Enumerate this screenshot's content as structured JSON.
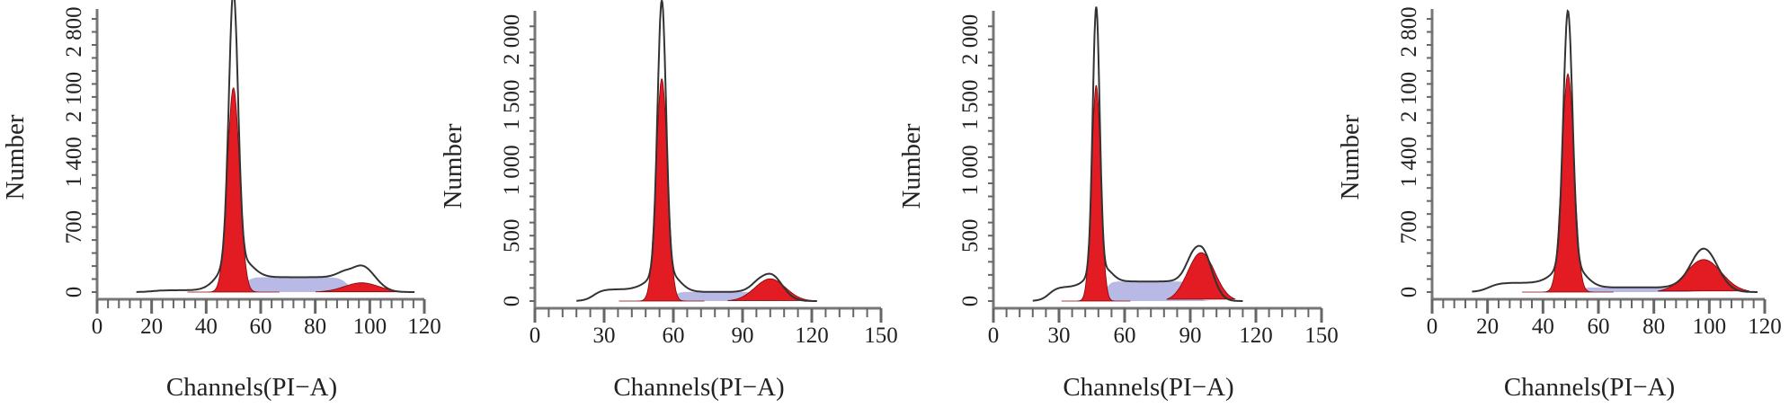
{
  "chart_data": [
    {
      "type": "area",
      "xlabel": "Channels(PI−A)",
      "ylabel": "Number",
      "xlim": [
        0,
        120
      ],
      "ylim": [
        0,
        2950
      ],
      "xticks": [
        0,
        20,
        40,
        60,
        80,
        100,
        120
      ],
      "xtick_labels": [
        "0",
        "20",
        "40",
        "60",
        "80",
        "100",
        "120"
      ],
      "yticks": [
        0,
        700,
        1400,
        2100,
        2800
      ],
      "ytick_labels": [
        "0",
        "700",
        "1 400",
        "2 100",
        "2 800"
      ],
      "g1": {
        "channel": 50,
        "total_peak": 2900,
        "fit_peak": 2200
      },
      "s_phase": {
        "start": 54,
        "end": 92,
        "level": 160
      },
      "g2": {
        "channel": 97,
        "total_peak": 330,
        "fit_peak": 100
      },
      "debris_level": 20,
      "colors": {
        "g1_g2_fit": "#e31b23",
        "s_phase_fit": "#b9b9e6",
        "histogram": "#333333"
      }
    },
    {
      "type": "area",
      "xlabel": "Channels(PI−A)",
      "ylabel": "Number",
      "xlim": [
        0,
        150
      ],
      "ylim": [
        0,
        2150
      ],
      "xticks": [
        0,
        30,
        60,
        90,
        120,
        150
      ],
      "xtick_labels": [
        "0",
        "30",
        "60",
        "90",
        "120",
        "150"
      ],
      "yticks": [
        0,
        500,
        1000,
        1500,
        2000
      ],
      "ytick_labels": [
        "0",
        "500",
        "1 000",
        "1 500",
        "2 000"
      ],
      "g1": {
        "channel": 55,
        "total_peak": 2050,
        "fit_peak": 1700
      },
      "s_phase": {
        "start": 60,
        "end": 98,
        "level": 70
      },
      "g2": {
        "channel": 102,
        "total_peak": 240,
        "fit_peak": 170
      },
      "debris_level": 90,
      "colors": {
        "g1_g2_fit": "#e31b23",
        "s_phase_fit": "#b9b9e6",
        "histogram": "#333333"
      }
    },
    {
      "type": "area",
      "xlabel": "Channels(PI−A)",
      "ylabel": "Number",
      "xlim": [
        0,
        150
      ],
      "ylim": [
        0,
        2150
      ],
      "xticks": [
        0,
        30,
        60,
        90,
        120,
        150
      ],
      "xtick_labels": [
        "0",
        "30",
        "60",
        "90",
        "120",
        "150"
      ],
      "yticks": [
        0,
        500,
        1000,
        1500,
        2000
      ],
      "ytick_labels": [
        "0",
        "500",
        "1 000",
        "1 500",
        "2 000"
      ],
      "g1": {
        "channel": 47,
        "total_peak": 2000,
        "fit_peak": 1650
      },
      "s_phase": {
        "start": 51,
        "end": 92,
        "level": 150
      },
      "g2": {
        "channel": 95,
        "total_peak": 470,
        "fit_peak": 370
      },
      "debris_level": 110,
      "colors": {
        "g1_g2_fit": "#e31b23",
        "s_phase_fit": "#b9b9e6",
        "histogram": "#333333"
      }
    },
    {
      "type": "area",
      "xlabel": "Channels(PI−A)",
      "ylabel": "Number",
      "xlim": [
        0,
        120
      ],
      "ylim": [
        0,
        2950
      ],
      "xticks": [
        0,
        20,
        40,
        60,
        80,
        100,
        120
      ],
      "xtick_labels": [
        "0",
        "20",
        "40",
        "60",
        "80",
        "100",
        "120"
      ],
      "yticks": [
        0,
        700,
        1400,
        2100,
        2800
      ],
      "ytick_labels": [
        "0",
        "700",
        "1 400",
        "2 100",
        "2 800"
      ],
      "g1": {
        "channel": 49,
        "total_peak": 2700,
        "fit_peak": 2350
      },
      "s_phase": {
        "start": 53,
        "end": 90,
        "level": 50
      },
      "g2": {
        "channel": 98,
        "total_peak": 550,
        "fit_peak": 350
      },
      "debris_level": 100,
      "colors": {
        "g1_g2_fit": "#e31b23",
        "s_phase_fit": "#b9b9e6",
        "histogram": "#333333"
      }
    }
  ]
}
